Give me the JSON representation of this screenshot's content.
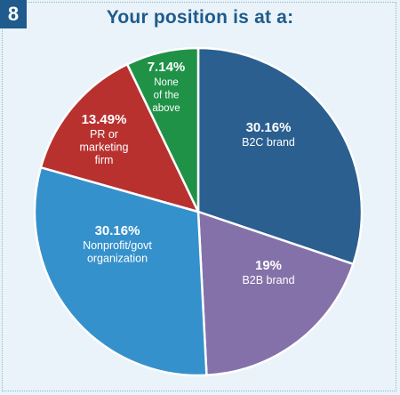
{
  "badge": "8",
  "chart_data": {
    "type": "pie",
    "title": "Your position is at a:",
    "slices": [
      {
        "label": "B2C brand",
        "pct_text": "30.16%",
        "value": 30.16,
        "color": "#2a5f8f"
      },
      {
        "label": "B2B brand",
        "pct_text": "19%",
        "value": 19.0,
        "color": "#8571a9"
      },
      {
        "label": "Nonprofit/govt organization",
        "pct_text": "30.16%",
        "value": 30.16,
        "color": "#3591cb"
      },
      {
        "label": "PR or marketing firm",
        "pct_text": "13.49%",
        "value": 13.49,
        "color": "#b8312f"
      },
      {
        "label": "None of the above",
        "pct_text": "7.14%",
        "value": 7.14,
        "color": "#1f9247"
      }
    ],
    "legend": "none"
  }
}
